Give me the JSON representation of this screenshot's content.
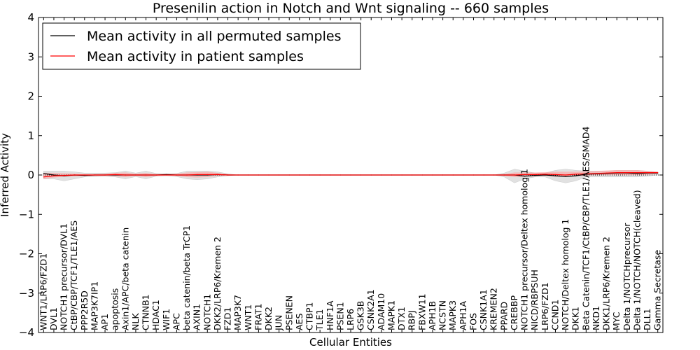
{
  "chart_data": {
    "type": "line",
    "title": "Presenilin action in Notch and Wnt signaling -- 660 samples",
    "xlabel": "Cellular Entities",
    "ylabel": "Inferred Activity",
    "ylim": [
      -4,
      4
    ],
    "yticks": [
      -4,
      -3,
      -2,
      -1,
      0,
      1,
      2,
      3,
      4
    ],
    "ytick_labels": [
      "−4",
      "−3",
      "−2",
      "−1",
      "0",
      "1",
      "2",
      "3",
      "4"
    ],
    "legend_position": "top-left",
    "categories": [
      "WNT1/LRP6/FZD1",
      "DVL1",
      "NOTCH1 precursor/DVL1",
      "CtBP/CBP/TCF1/TLE1/AES",
      "PPP2R5D",
      "MAP3K7IP1",
      "AP1",
      "apoptosis",
      "Axin1/APC/beta catenin",
      "NLK",
      "CTNNB1",
      "HDAC1",
      "WIF1",
      "APC",
      "beta catenin/beta TrCP1",
      "AXIN1",
      "NOTCH1",
      "DKK2/LRP6/Kremen 2",
      "FZD1",
      "MAP3K7",
      "WNT1",
      "FRAT1",
      "DKK2",
      "JUN",
      "PSENEN",
      "AES",
      "CTBP1",
      "TLE1",
      "HNF1A",
      "PSEN1",
      "LRP6",
      "GSK3B",
      "CSNK2A1",
      "ADAM10",
      "MAPK1",
      "DTX1",
      "RBPJ",
      "FBXW11",
      "APH1B",
      "NCSTN",
      "MAPK3",
      "APH1A",
      "FOS",
      "CSNK1A1",
      "KREMEN2",
      "PPARD",
      "CREBBP",
      "NOTCH1 precursor/Deltex homolog 1",
      "NICD/RBPSUH",
      "LRP6/FZD1",
      "CCND1",
      "NOTCH/Deltex homolog 1",
      "DKK1",
      "Beta Catenin/TCF1/CtBP/CBP/TLE1/AES/SMAD4",
      "NKD1",
      "DKK1/LRP6/Kremen 2",
      "MYC",
      "Delta 1/NOTCHprecursor",
      "Delta 1/NOTCH/NOTCH(cleaved)",
      "DLL1",
      "Gamma Secretase"
    ],
    "series": [
      {
        "name": "Mean activity in all permuted samples",
        "color": "#000000",
        "values": [
          0.04,
          0.0,
          -0.02,
          0.0,
          -0.01,
          0.0,
          0.0,
          0.0,
          0.0,
          0.0,
          0.0,
          0.0,
          0.01,
          0.0,
          0.0,
          0.0,
          0.0,
          0.01,
          0.0,
          0.0,
          0.0,
          0.0,
          0.0,
          0.0,
          0.0,
          0.0,
          0.0,
          0.0,
          0.0,
          0.0,
          0.0,
          0.0,
          0.0,
          0.0,
          0.0,
          0.0,
          0.0,
          0.0,
          0.0,
          0.0,
          0.0,
          0.0,
          0.0,
          0.0,
          0.0,
          0.0,
          0.0,
          -0.03,
          -0.01,
          0.0,
          -0.02,
          -0.04,
          -0.02,
          0.02,
          0.03,
          0.04,
          0.05,
          0.05,
          0.04,
          0.05,
          0.05
        ],
        "band_low": [
          -0.1,
          -0.1,
          -0.15,
          -0.1,
          -0.05,
          -0.04,
          -0.03,
          -0.05,
          -0.1,
          -0.04,
          -0.1,
          -0.03,
          -0.02,
          -0.04,
          -0.1,
          -0.12,
          -0.1,
          -0.05,
          -0.02,
          0.0,
          0.0,
          0.0,
          0.0,
          0.0,
          0.0,
          0.0,
          0.0,
          0.0,
          0.0,
          0.0,
          0.0,
          0.0,
          0.0,
          0.0,
          0.0,
          0.0,
          0.0,
          0.0,
          0.0,
          0.0,
          0.0,
          0.0,
          0.0,
          0.0,
          0.0,
          -0.05,
          -0.2,
          -0.1,
          -0.05,
          -0.05,
          -0.15,
          -0.2,
          -0.15,
          -0.05,
          -0.05,
          -0.05,
          -0.05,
          -0.05,
          -0.05,
          -0.03,
          0.0
        ],
        "band_high": [
          0.1,
          0.1,
          0.1,
          0.08,
          0.05,
          0.05,
          0.05,
          0.06,
          0.1,
          0.05,
          0.1,
          0.04,
          0.03,
          0.04,
          0.1,
          0.1,
          0.1,
          0.08,
          0.03,
          0.0,
          0.0,
          0.0,
          0.0,
          0.0,
          0.0,
          0.0,
          0.0,
          0.0,
          0.0,
          0.0,
          0.0,
          0.0,
          0.0,
          0.0,
          0.0,
          0.0,
          0.0,
          0.0,
          0.0,
          0.0,
          0.0,
          0.0,
          0.0,
          0.0,
          0.0,
          0.05,
          0.15,
          0.1,
          0.05,
          0.05,
          0.12,
          0.15,
          0.12,
          0.1,
          0.1,
          0.1,
          0.12,
          0.12,
          0.12,
          0.1,
          0.08
        ]
      },
      {
        "name": "Mean activity in patient samples",
        "color": "#ff0000",
        "band_color": "#ff9999",
        "values": [
          -0.05,
          -0.02,
          -0.01,
          0.0,
          0.0,
          0.0,
          0.0,
          0.01,
          0.0,
          0.0,
          0.0,
          0.0,
          0.0,
          0.0,
          0.0,
          0.01,
          0.01,
          0.01,
          0.0,
          0.0,
          0.0,
          0.0,
          0.0,
          0.0,
          0.0,
          0.0,
          0.0,
          0.0,
          0.0,
          0.0,
          0.0,
          0.0,
          0.0,
          0.0,
          0.0,
          0.0,
          0.0,
          0.0,
          0.0,
          0.0,
          0.0,
          0.0,
          0.0,
          0.0,
          0.0,
          0.0,
          0.0,
          0.01,
          0.01,
          0.02,
          0.01,
          0.0,
          0.02,
          0.03,
          0.04,
          0.05,
          0.06,
          0.06,
          0.06,
          0.06,
          0.06
        ],
        "band_low": [
          -0.1,
          -0.06,
          -0.04,
          -0.03,
          -0.02,
          -0.02,
          -0.02,
          -0.03,
          -0.05,
          -0.02,
          -0.05,
          -0.02,
          -0.01,
          -0.02,
          -0.05,
          -0.06,
          -0.05,
          -0.02,
          -0.01,
          0.0,
          0.0,
          0.0,
          0.0,
          0.0,
          0.0,
          0.0,
          0.0,
          0.0,
          0.0,
          0.0,
          0.0,
          0.0,
          0.0,
          0.0,
          0.0,
          0.0,
          0.0,
          0.0,
          0.0,
          0.0,
          0.0,
          0.0,
          0.0,
          0.0,
          0.0,
          -0.02,
          -0.05,
          -0.04,
          -0.03,
          -0.02,
          -0.04,
          -0.04,
          -0.03,
          -0.01,
          0.0,
          0.0,
          0.0,
          0.0,
          0.0,
          0.01,
          0.03
        ],
        "band_high": [
          0.05,
          0.05,
          0.04,
          0.03,
          0.02,
          0.02,
          0.03,
          0.05,
          0.06,
          0.03,
          0.05,
          0.02,
          0.02,
          0.03,
          0.06,
          0.07,
          0.08,
          0.05,
          0.02,
          0.0,
          0.0,
          0.0,
          0.0,
          0.0,
          0.0,
          0.0,
          0.0,
          0.0,
          0.0,
          0.0,
          0.0,
          0.0,
          0.0,
          0.0,
          0.0,
          0.0,
          0.0,
          0.0,
          0.0,
          0.0,
          0.0,
          0.0,
          0.0,
          0.0,
          0.0,
          0.02,
          0.06,
          0.06,
          0.06,
          0.07,
          0.08,
          0.08,
          0.08,
          0.09,
          0.1,
          0.11,
          0.12,
          0.12,
          0.12,
          0.1,
          0.08
        ]
      }
    ],
    "zero_line": {
      "style": "dotted",
      "color": "#000000"
    }
  }
}
